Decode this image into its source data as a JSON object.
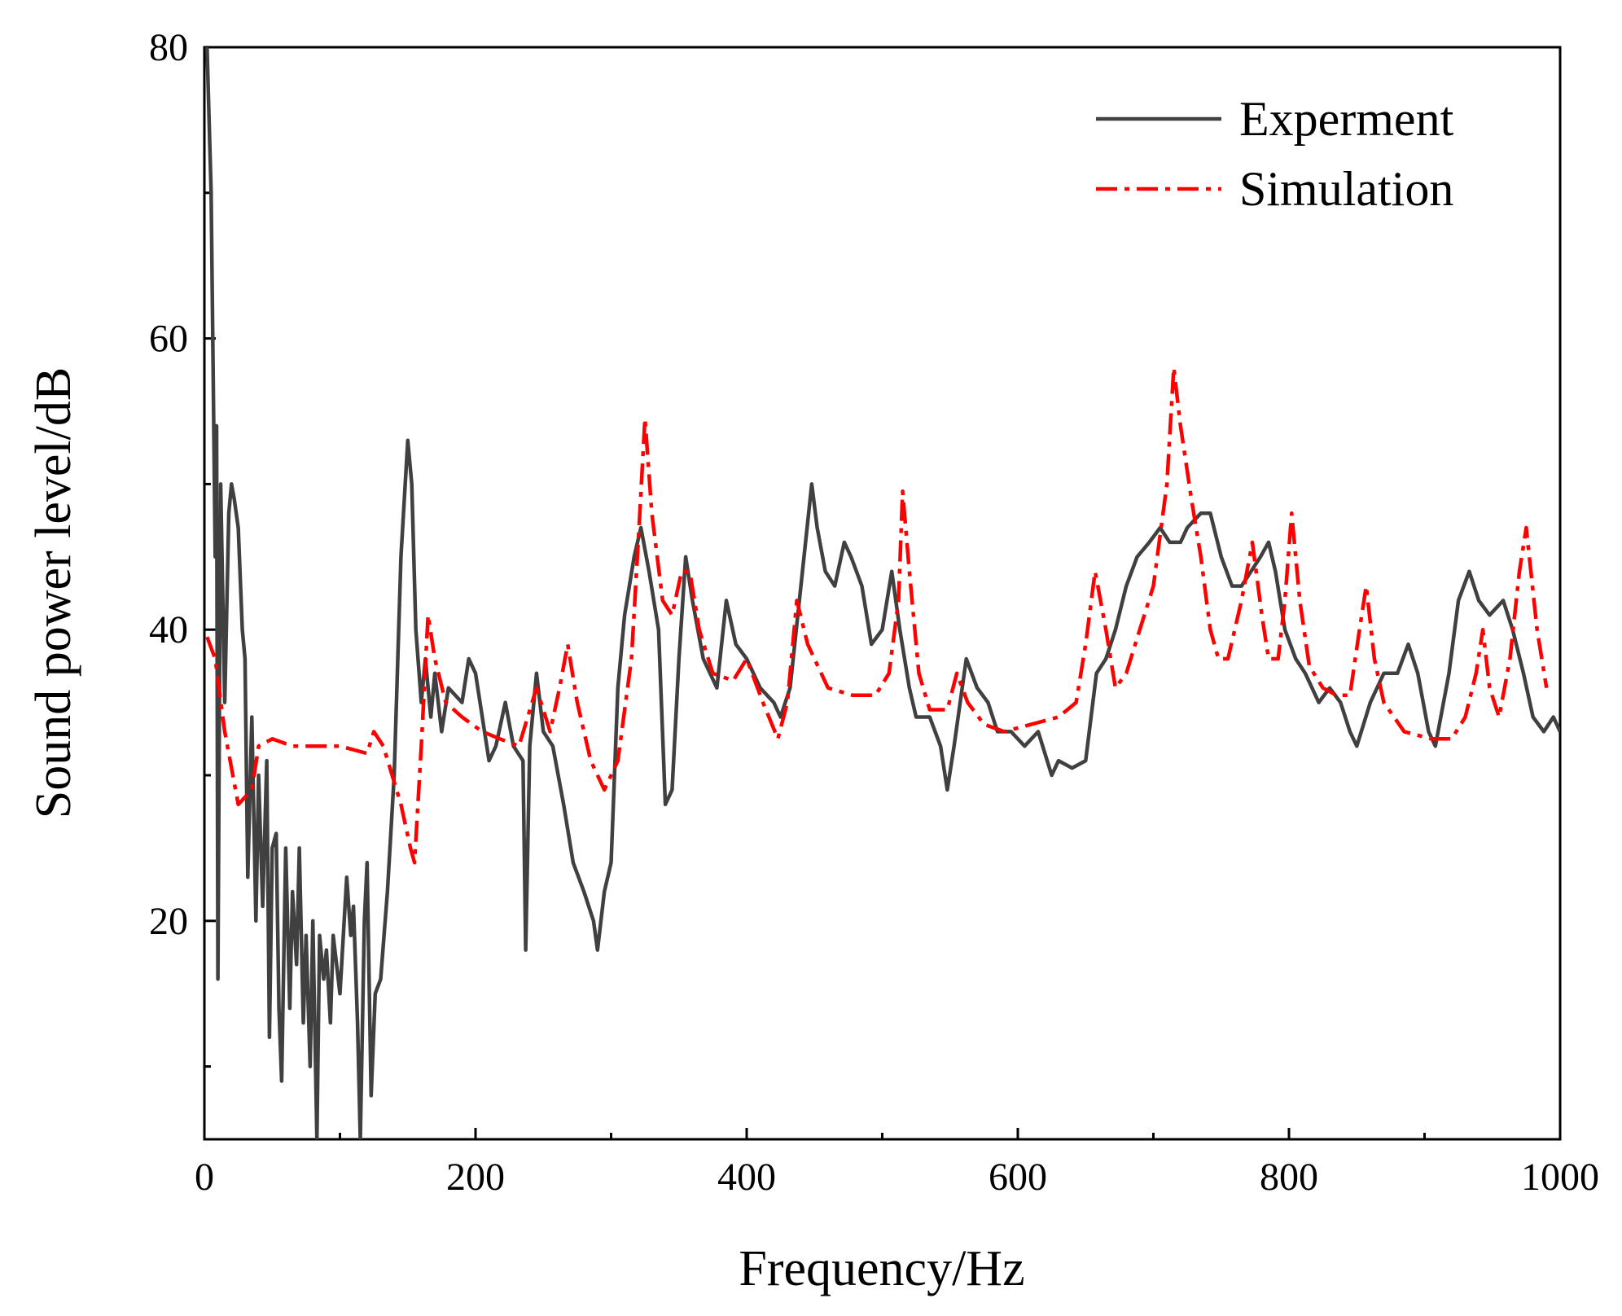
{
  "chart_data": {
    "type": "line",
    "x_label": "Frequency/Hz",
    "y_label": "Sound power level/dB",
    "xlim": [
      0,
      1000
    ],
    "xticks": [
      0,
      200,
      400,
      600,
      800,
      1000
    ],
    "xminorticks": [
      100,
      300,
      500,
      700,
      900
    ],
    "ylim": [
      5,
      80
    ],
    "yticks": [
      20,
      40,
      60,
      80
    ],
    "yminorticks": [
      10,
      30,
      50,
      70
    ],
    "grid": false,
    "legend": "upper right",
    "series": [
      {
        "name": "Experment",
        "color": "#404040",
        "dash": "solid",
        "x": [
          2,
          5,
          8,
          9,
          10,
          12,
          15,
          18,
          20,
          22,
          25,
          28,
          30,
          32,
          35,
          38,
          40,
          43,
          46,
          48,
          50,
          53,
          55,
          57,
          60,
          63,
          65,
          68,
          70,
          73,
          75,
          78,
          80,
          83,
          85,
          88,
          90,
          93,
          95,
          100,
          105,
          108,
          110,
          113,
          115,
          118,
          120,
          123,
          126,
          130,
          135,
          140,
          145,
          150,
          153,
          156,
          160,
          163,
          167,
          170,
          175,
          180,
          190,
          195,
          200,
          205,
          210,
          215,
          222,
          228,
          235,
          237,
          240,
          245,
          250,
          257,
          265,
          272,
          280,
          287,
          290,
          295,
          300,
          305,
          310,
          317,
          322,
          328,
          335,
          340,
          345,
          350,
          355,
          360,
          368,
          378,
          385,
          392,
          400,
          410,
          420,
          425,
          432,
          440,
          448,
          452,
          458,
          465,
          472,
          477,
          485,
          492,
          500,
          507,
          513,
          520,
          525,
          535,
          543,
          548,
          553,
          562,
          570,
          578,
          585,
          595,
          605,
          615,
          625,
          630,
          640,
          650,
          658,
          665,
          672,
          680,
          688,
          697,
          705,
          712,
          720,
          725,
          735,
          742,
          750,
          758,
          765,
          772,
          779,
          785,
          790,
          797,
          805,
          812,
          822,
          830,
          838,
          845,
          850,
          860,
          870,
          880,
          888,
          895,
          903,
          908,
          918,
          925,
          933,
          940,
          948,
          958,
          965,
          973,
          980,
          988,
          995,
          1000
        ],
        "values": [
          80,
          70,
          45,
          54,
          16,
          50,
          35,
          48,
          50,
          49,
          47,
          40,
          38,
          23,
          34,
          20,
          30,
          21,
          31,
          12,
          25,
          26,
          14,
          9,
          25,
          14,
          22,
          17,
          25,
          13,
          19,
          10,
          20,
          5,
          19,
          16,
          18,
          13,
          19,
          15,
          23,
          19,
          21,
          13,
          5,
          20,
          24,
          8,
          15,
          16,
          22,
          30,
          45,
          53,
          50,
          40,
          35,
          38,
          34,
          37,
          33,
          36,
          35,
          38,
          37,
          34,
          31,
          32,
          35,
          32,
          31,
          18,
          32,
          37,
          33,
          32,
          28,
          24,
          22,
          20,
          18,
          22,
          24,
          36,
          41,
          45,
          47,
          44,
          40,
          28,
          29,
          38,
          45,
          42,
          38,
          36,
          42,
          39,
          38,
          36,
          35,
          34,
          36,
          43,
          50,
          47,
          44,
          43,
          46,
          45,
          43,
          39,
          40,
          44,
          40,
          36,
          34,
          34,
          32,
          29,
          32,
          38,
          36,
          35,
          33,
          33,
          32,
          33,
          30,
          31,
          30.5,
          31,
          37,
          38,
          40,
          43,
          45,
          46,
          47,
          46,
          46,
          47,
          48,
          48,
          45,
          43,
          43,
          44,
          45,
          46,
          44,
          40,
          38,
          37,
          35,
          36,
          35,
          33,
          32,
          35,
          37,
          37,
          39,
          37,
          33,
          32,
          37,
          42,
          44,
          42,
          41,
          42,
          40,
          37,
          34,
          33,
          34,
          33
        ]
      },
      {
        "name": "Simulation",
        "color": "#ff0000",
        "dash": "dashdot",
        "x": [
          2,
          8,
          15,
          25,
          35,
          40,
          50,
          65,
          80,
          100,
          120,
          125,
          132,
          145,
          152,
          155,
          160,
          165,
          170,
          178,
          190,
          205,
          218,
          232,
          245,
          255,
          262,
          268,
          275,
          285,
          295,
          305,
          315,
          320,
          325,
          330,
          338,
          345,
          352,
          358,
          365,
          375,
          390,
          400,
          412,
          423,
          430,
          437,
          445,
          460,
          478,
          495,
          505,
          512,
          515,
          520,
          527,
          535,
          548,
          555,
          563,
          575,
          590,
          610,
          630,
          643,
          650,
          657,
          665,
          672,
          680,
          690,
          700,
          710,
          715,
          720,
          728,
          735,
          742,
          748,
          755,
          765,
          773,
          780,
          785,
          792,
          797,
          802,
          808,
          815,
          825,
          835,
          845,
          852,
          857,
          863,
          870,
          885,
          905,
          920,
          930,
          938,
          943,
          948,
          955,
          963,
          970,
          975,
          983,
          990
        ],
        "values": [
          39.5,
          38,
          33,
          28,
          29,
          32,
          32.5,
          32,
          32,
          32,
          31.5,
          33,
          32,
          28,
          25,
          24,
          32,
          41,
          38,
          35,
          34,
          33,
          32.5,
          32,
          36,
          33,
          36,
          39,
          35,
          31,
          29,
          31,
          38,
          46,
          54.5,
          48,
          42,
          41,
          44,
          44,
          40,
          37,
          36.5,
          38,
          35,
          32.5,
          35,
          42,
          39,
          36,
          35.5,
          35.5,
          37,
          42,
          49.5,
          44,
          37,
          34.5,
          34.5,
          37,
          35,
          33.5,
          33,
          33.5,
          34,
          35,
          39,
          44,
          40,
          36,
          37,
          40,
          43,
          50,
          58,
          54,
          49,
          45,
          40,
          38,
          38,
          42,
          46,
          41,
          38,
          38,
          42,
          48,
          42,
          37.5,
          36,
          35.5,
          35.5,
          40,
          43,
          38,
          35,
          33,
          32.5,
          32.5,
          34,
          37,
          40,
          36,
          34,
          38,
          44,
          47,
          40,
          36
        ]
      }
    ]
  }
}
